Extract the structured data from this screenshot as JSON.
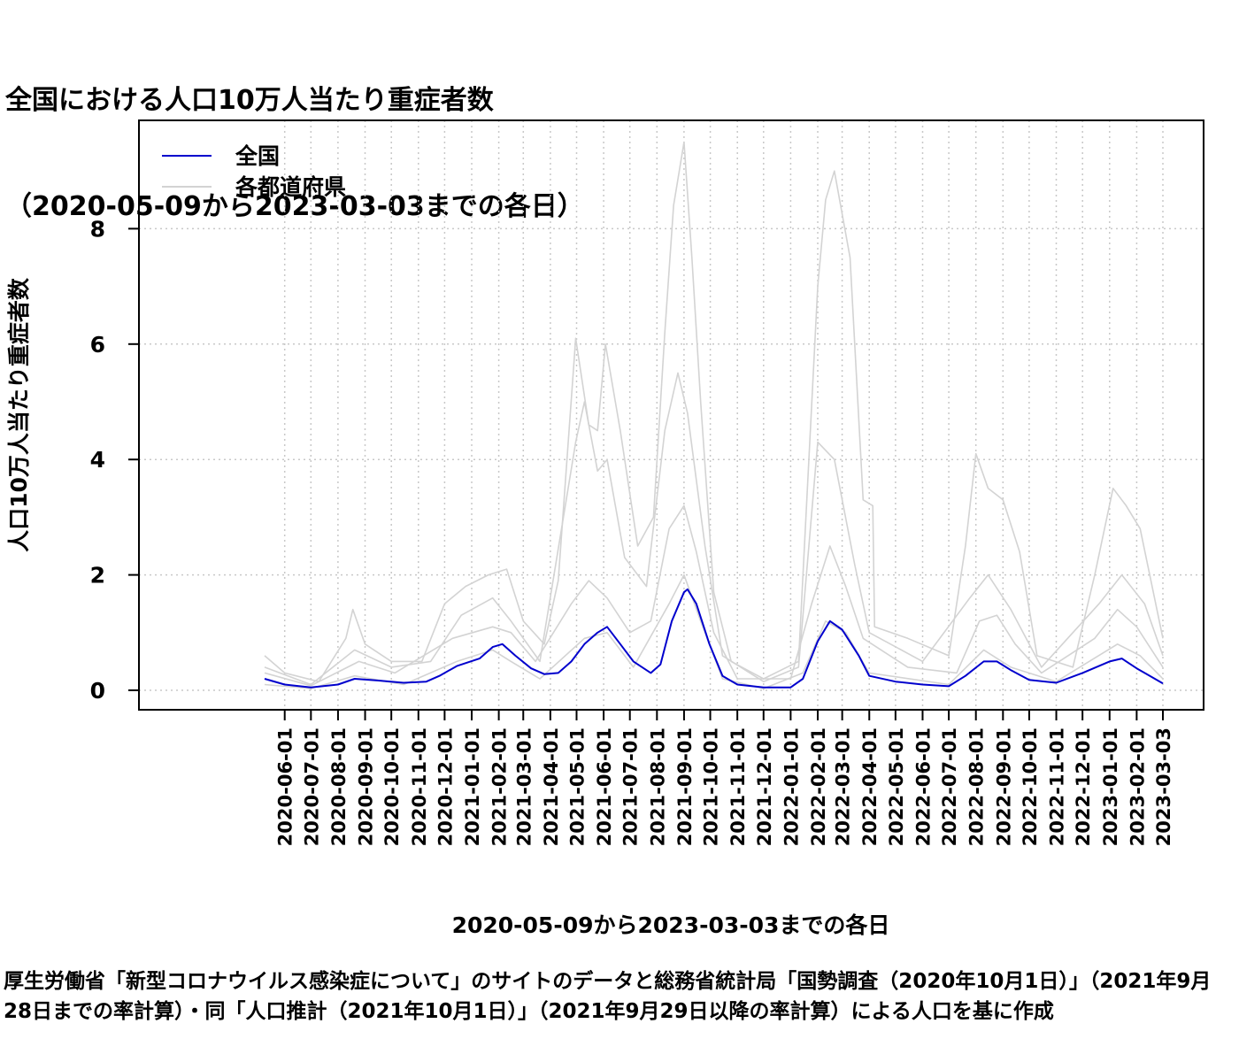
{
  "title_lines": [
    "全国における人口10万人当たり重症者数",
    "（2020-05-09から2023-03-03までの各日）"
  ],
  "caption": "厚生労働省「新型コロナウイルス感染症について」のサイトのデータと総務省統計局「国勢調査（2020年10月1日）」（2021年9月28日までの率計算）・同「人口推計（2021年10月1日）」（2021年9月29日以降の率計算）による人口を基に作成",
  "colors": {
    "national": "#0000cd",
    "prefectures": "#d3d3d3",
    "grid": "#c8c8c8",
    "axis": "#000000"
  },
  "chart_data": {
    "type": "line",
    "title": "全国における人口10万人当たり重症者数（2020-05-09から2023-03-03までの各日）",
    "xlabel": "2020-05-09から2023-03-03までの各日",
    "ylabel": "人口10万人当たり重症者数",
    "xlim": [
      "2020-05-09",
      "2023-03-03"
    ],
    "ylim": [
      0,
      9.5
    ],
    "yticks": [
      0,
      2,
      4,
      6,
      8
    ],
    "xticks": [
      "2020-06-01",
      "2020-07-01",
      "2020-08-01",
      "2020-09-01",
      "2020-10-01",
      "2020-11-01",
      "2020-12-01",
      "2021-01-01",
      "2021-02-01",
      "2021-03-01",
      "2021-04-01",
      "2021-05-01",
      "2021-06-01",
      "2021-07-01",
      "2021-08-01",
      "2021-09-01",
      "2021-10-01",
      "2021-11-01",
      "2021-12-01",
      "2022-01-01",
      "2022-02-01",
      "2022-03-01",
      "2022-04-01",
      "2022-05-01",
      "2022-06-01",
      "2022-07-01",
      "2022-08-01",
      "2022-09-01",
      "2022-10-01",
      "2022-11-01",
      "2022-12-01",
      "2023-01-01",
      "2023-02-01",
      "2023-03-03"
    ],
    "grid": true,
    "legend": {
      "placement": "top-left",
      "entries": [
        "全国",
        "各都道府県"
      ]
    },
    "series": [
      {
        "name": "全国",
        "color": "#0000cd",
        "points": [
          [
            "2020-05-09",
            0.2
          ],
          [
            "2020-06-01",
            0.1
          ],
          [
            "2020-07-01",
            0.05
          ],
          [
            "2020-08-01",
            0.1
          ],
          [
            "2020-08-20",
            0.2
          ],
          [
            "2020-09-15",
            0.17
          ],
          [
            "2020-10-15",
            0.13
          ],
          [
            "2020-11-10",
            0.15
          ],
          [
            "2020-11-25",
            0.25
          ],
          [
            "2020-12-15",
            0.42
          ],
          [
            "2021-01-10",
            0.55
          ],
          [
            "2021-01-25",
            0.75
          ],
          [
            "2021-02-05",
            0.8
          ],
          [
            "2021-02-20",
            0.6
          ],
          [
            "2021-03-10",
            0.38
          ],
          [
            "2021-03-25",
            0.28
          ],
          [
            "2021-04-10",
            0.3
          ],
          [
            "2021-04-25",
            0.5
          ],
          [
            "2021-05-10",
            0.8
          ],
          [
            "2021-05-25",
            1.0
          ],
          [
            "2021-06-05",
            1.1
          ],
          [
            "2021-06-20",
            0.8
          ],
          [
            "2021-07-05",
            0.5
          ],
          [
            "2021-07-25",
            0.3
          ],
          [
            "2021-08-05",
            0.45
          ],
          [
            "2021-08-18",
            1.2
          ],
          [
            "2021-09-01",
            1.7
          ],
          [
            "2021-09-05",
            1.75
          ],
          [
            "2021-09-15",
            1.5
          ],
          [
            "2021-09-30",
            0.8
          ],
          [
            "2021-10-15",
            0.25
          ],
          [
            "2021-11-01",
            0.1
          ],
          [
            "2021-12-01",
            0.05
          ],
          [
            "2022-01-01",
            0.05
          ],
          [
            "2022-01-15",
            0.2
          ],
          [
            "2022-02-01",
            0.85
          ],
          [
            "2022-02-15",
            1.2
          ],
          [
            "2022-03-01",
            1.05
          ],
          [
            "2022-03-20",
            0.6
          ],
          [
            "2022-04-01",
            0.25
          ],
          [
            "2022-05-01",
            0.15
          ],
          [
            "2022-06-01",
            0.1
          ],
          [
            "2022-07-01",
            0.07
          ],
          [
            "2022-07-20",
            0.25
          ],
          [
            "2022-08-10",
            0.5
          ],
          [
            "2022-08-25",
            0.5
          ],
          [
            "2022-09-10",
            0.35
          ],
          [
            "2022-10-01",
            0.18
          ],
          [
            "2022-11-01",
            0.13
          ],
          [
            "2022-12-01",
            0.3
          ],
          [
            "2023-01-01",
            0.5
          ],
          [
            "2023-01-15",
            0.55
          ],
          [
            "2023-02-01",
            0.38
          ],
          [
            "2023-03-03",
            0.12
          ]
        ]
      },
      {
        "name": "各都道府県",
        "color": "#d3d3d3",
        "points": [
          [
            "2020-05-09",
            0.6
          ],
          [
            "2020-06-01",
            0.3
          ],
          [
            "2020-07-10",
            0.15
          ],
          [
            "2020-08-10",
            0.9
          ],
          [
            "2020-08-18",
            1.4
          ],
          [
            "2020-09-01",
            0.8
          ],
          [
            "2020-10-01",
            0.5
          ],
          [
            "2020-11-05",
            0.5
          ],
          [
            "2020-12-01",
            1.5
          ],
          [
            "2020-12-25",
            1.8
          ],
          [
            "2021-01-20",
            2.0
          ],
          [
            "2021-02-10",
            2.1
          ],
          [
            "2021-03-01",
            1.2
          ],
          [
            "2021-03-25",
            0.8
          ],
          [
            "2021-04-10",
            1.9
          ],
          [
            "2021-04-30",
            6.1
          ],
          [
            "2021-05-15",
            4.6
          ],
          [
            "2021-05-25",
            4.5
          ],
          [
            "2021-06-03",
            6.0
          ],
          [
            "2021-06-20",
            4.5
          ],
          [
            "2021-07-10",
            2.5
          ],
          [
            "2021-07-28",
            3.0
          ],
          [
            "2021-08-10",
            6.2
          ],
          [
            "2021-08-20",
            8.4
          ],
          [
            "2021-09-01",
            9.5
          ],
          [
            "2021-09-10",
            7.5
          ],
          [
            "2021-09-20",
            5.0
          ],
          [
            "2021-10-05",
            1.7
          ],
          [
            "2021-10-25",
            0.5
          ],
          [
            "2021-12-01",
            0.2
          ],
          [
            "2022-01-10",
            0.5
          ],
          [
            "2022-02-01",
            7.0
          ],
          [
            "2022-02-10",
            8.5
          ],
          [
            "2022-02-20",
            9.0
          ],
          [
            "2022-03-10",
            7.5
          ],
          [
            "2022-03-25",
            3.3
          ],
          [
            "2022-04-05",
            3.2
          ],
          [
            "2022-04-07",
            1.1
          ],
          [
            "2022-05-15",
            0.9
          ],
          [
            "2022-07-01",
            0.6
          ],
          [
            "2022-07-20",
            2.5
          ],
          [
            "2022-08-01",
            4.1
          ],
          [
            "2022-08-15",
            3.5
          ],
          [
            "2022-09-01",
            3.3
          ],
          [
            "2022-09-20",
            2.4
          ],
          [
            "2022-10-10",
            0.6
          ],
          [
            "2022-11-20",
            0.4
          ],
          [
            "2022-12-15",
            2.0
          ],
          [
            "2023-01-05",
            3.5
          ],
          [
            "2023-01-20",
            3.2
          ],
          [
            "2023-02-05",
            2.8
          ],
          [
            "2023-03-03",
            0.9
          ]
        ]
      },
      {
        "name": "各都道府県",
        "color": "#d3d3d3",
        "points": [
          [
            "2020-05-09",
            0.4
          ],
          [
            "2020-07-01",
            0.1
          ],
          [
            "2020-08-20",
            0.7
          ],
          [
            "2020-10-01",
            0.4
          ],
          [
            "2020-11-15",
            0.5
          ],
          [
            "2020-12-20",
            1.3
          ],
          [
            "2021-01-25",
            1.6
          ],
          [
            "2021-02-15",
            1.2
          ],
          [
            "2021-03-20",
            0.5
          ],
          [
            "2021-04-30",
            4.3
          ],
          [
            "2021-05-10",
            5.0
          ],
          [
            "2021-05-25",
            3.8
          ],
          [
            "2021-06-05",
            4.0
          ],
          [
            "2021-06-25",
            2.3
          ],
          [
            "2021-07-20",
            1.8
          ],
          [
            "2021-08-10",
            4.5
          ],
          [
            "2021-08-25",
            5.5
          ],
          [
            "2021-09-05",
            4.8
          ],
          [
            "2021-09-25",
            2.5
          ],
          [
            "2021-10-15",
            0.6
          ],
          [
            "2021-12-01",
            0.15
          ],
          [
            "2022-01-10",
            0.4
          ],
          [
            "2022-02-01",
            4.3
          ],
          [
            "2022-02-20",
            4.0
          ],
          [
            "2022-03-15",
            2.2
          ],
          [
            "2022-04-01",
            1.0
          ],
          [
            "2022-06-01",
            0.5
          ],
          [
            "2022-07-25",
            1.6
          ],
          [
            "2022-08-15",
            2.0
          ],
          [
            "2022-09-10",
            1.4
          ],
          [
            "2022-10-15",
            0.4
          ],
          [
            "2022-12-20",
            1.5
          ],
          [
            "2023-01-15",
            2.0
          ],
          [
            "2023-02-10",
            1.5
          ],
          [
            "2023-03-03",
            0.6
          ]
        ]
      },
      {
        "name": "各都道府県",
        "color": "#d3d3d3",
        "points": [
          [
            "2020-05-09",
            0.3
          ],
          [
            "2020-07-01",
            0.08
          ],
          [
            "2020-08-25",
            0.5
          ],
          [
            "2020-10-05",
            0.3
          ],
          [
            "2020-12-10",
            0.9
          ],
          [
            "2021-01-25",
            1.1
          ],
          [
            "2021-02-15",
            1.0
          ],
          [
            "2021-03-15",
            0.5
          ],
          [
            "2021-04-25",
            1.5
          ],
          [
            "2021-05-15",
            1.9
          ],
          [
            "2021-06-05",
            1.6
          ],
          [
            "2021-07-01",
            1.0
          ],
          [
            "2021-07-25",
            1.2
          ],
          [
            "2021-08-15",
            2.8
          ],
          [
            "2021-09-01",
            3.2
          ],
          [
            "2021-09-15",
            2.4
          ],
          [
            "2021-10-05",
            1.0
          ],
          [
            "2021-11-01",
            0.2
          ],
          [
            "2022-01-01",
            0.2
          ],
          [
            "2022-01-25",
            1.5
          ],
          [
            "2022-02-15",
            2.5
          ],
          [
            "2022-03-05",
            1.8
          ],
          [
            "2022-03-25",
            0.9
          ],
          [
            "2022-05-15",
            0.4
          ],
          [
            "2022-07-10",
            0.3
          ],
          [
            "2022-08-05",
            1.2
          ],
          [
            "2022-08-25",
            1.3
          ],
          [
            "2022-09-15",
            0.8
          ],
          [
            "2022-10-15",
            0.3
          ],
          [
            "2022-12-15",
            0.9
          ],
          [
            "2023-01-10",
            1.4
          ],
          [
            "2023-02-01",
            1.1
          ],
          [
            "2023-03-03",
            0.4
          ]
        ]
      },
      {
        "name": "各都道府県",
        "color": "#d3d3d3",
        "points": [
          [
            "2020-05-09",
            0.1
          ],
          [
            "2020-07-01",
            0.03
          ],
          [
            "2020-08-20",
            0.25
          ],
          [
            "2020-10-15",
            0.1
          ],
          [
            "2020-12-15",
            0.5
          ],
          [
            "2021-01-25",
            0.7
          ],
          [
            "2021-02-15",
            0.5
          ],
          [
            "2021-03-20",
            0.2
          ],
          [
            "2021-05-10",
            0.9
          ],
          [
            "2021-06-05",
            1.0
          ],
          [
            "2021-07-05",
            0.4
          ],
          [
            "2021-08-15",
            1.5
          ],
          [
            "2021-09-01",
            2.0
          ],
          [
            "2021-09-20",
            1.2
          ],
          [
            "2021-10-15",
            0.2
          ],
          [
            "2021-12-01",
            0.03
          ],
          [
            "2022-01-15",
            0.3
          ],
          [
            "2022-02-10",
            1.2
          ],
          [
            "2022-03-05",
            1.0
          ],
          [
            "2022-04-01",
            0.3
          ],
          [
            "2022-07-01",
            0.1
          ],
          [
            "2022-08-10",
            0.7
          ],
          [
            "2022-09-10",
            0.4
          ],
          [
            "2022-11-01",
            0.15
          ],
          [
            "2023-01-10",
            0.8
          ],
          [
            "2023-02-05",
            0.6
          ],
          [
            "2023-03-03",
            0.2
          ]
        ]
      }
    ]
  }
}
